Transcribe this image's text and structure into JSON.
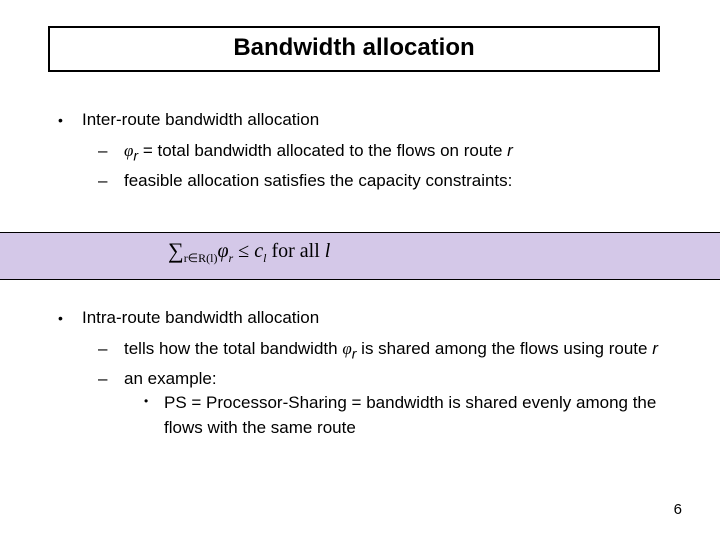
{
  "title": "Bandwidth allocation",
  "block1": {
    "heading": "Inter-route bandwidth allocation",
    "sub1_pre": "",
    "phi": "φ",
    "sub1_r": "r",
    "sub1_rest": " = total bandwidth allocated to the flows on route ",
    "sub1_tail_r": "r",
    "sub2": "feasible allocation satisfies the capacity constraints:"
  },
  "formula": {
    "sigma": "∑",
    "sub": "r∈R(l)",
    "phi": "φ",
    "phi_sub": "r",
    "leq": " ≤ ",
    "c": "c",
    "c_sub": "l",
    "forall": "   for all ",
    "l": "l"
  },
  "formula_band_color": "#d4c8e8",
  "block2": {
    "heading": "Intra-route bandwidth allocation",
    "sub1_a": "tells how the total bandwidth ",
    "phi": "φ",
    "sub1_r": "r",
    "sub1_b": " is shared among the flows using route ",
    "sub1_tail_r": "r",
    "sub2": "an example:",
    "sub2a": "PS = Processor-Sharing = bandwidth is shared evenly among the flows with the same route"
  },
  "page_number": "6"
}
